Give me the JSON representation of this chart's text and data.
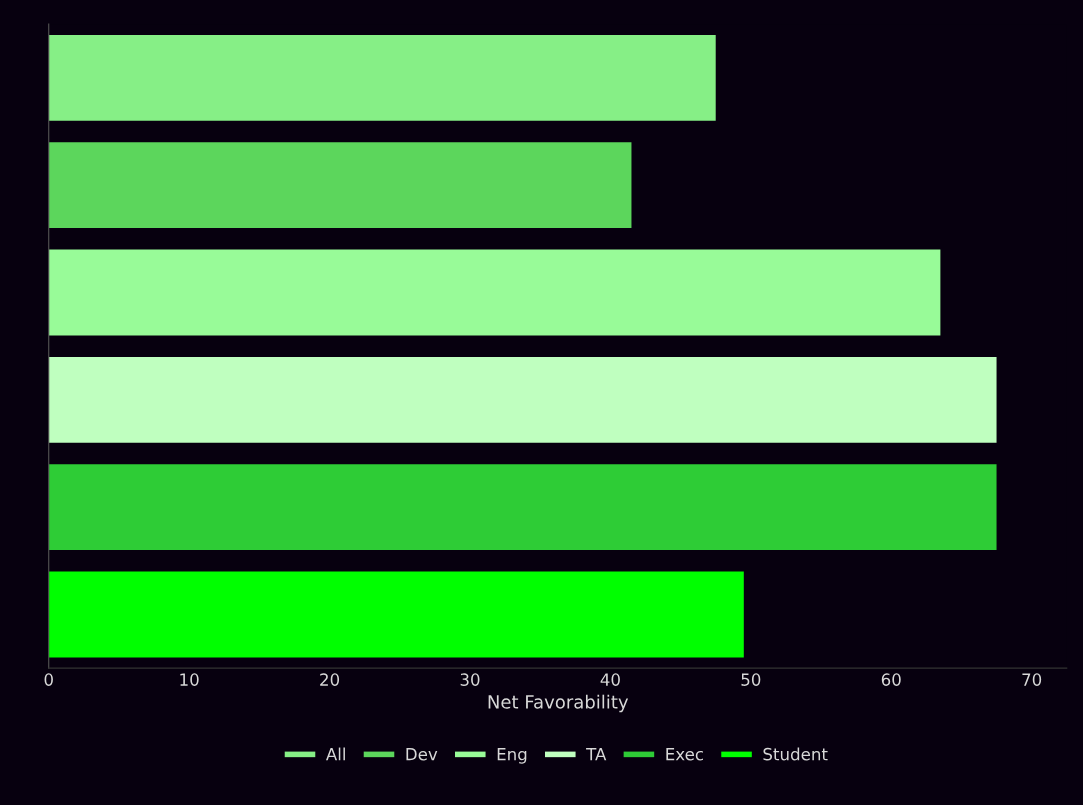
{
  "chart_data": {
    "type": "bar",
    "orientation": "horizontal",
    "xlabel": "Net Favorability",
    "categories": [
      null,
      null,
      null,
      null,
      null,
      null
    ],
    "series": [
      {
        "name": "All",
        "color": "#86ef86",
        "values": [
          47.5,
          null,
          null,
          null,
          null,
          null
        ]
      },
      {
        "name": "Dev",
        "color": "#5cd65c",
        "values": [
          null,
          41.5,
          null,
          null,
          null,
          null
        ]
      },
      {
        "name": "Eng",
        "color": "#98fb98",
        "values": [
          null,
          null,
          63.5,
          null,
          null,
          null
        ]
      },
      {
        "name": "TA",
        "color": "#bfffbf",
        "values": [
          null,
          null,
          null,
          67.5,
          null,
          null
        ]
      },
      {
        "name": "Exec",
        "color": "#2ecc36",
        "values": [
          null,
          null,
          null,
          null,
          67.5,
          null
        ]
      },
      {
        "name": "Student",
        "color": "#00ff00",
        "values": [
          null,
          null,
          null,
          null,
          null,
          49.5
        ]
      }
    ],
    "xlim": [
      0,
      72.5
    ],
    "xticks": [
      0,
      10,
      20,
      30,
      40,
      50,
      60,
      70
    ],
    "grid": false,
    "legend": "bottom",
    "tick_labels": "x"
  }
}
